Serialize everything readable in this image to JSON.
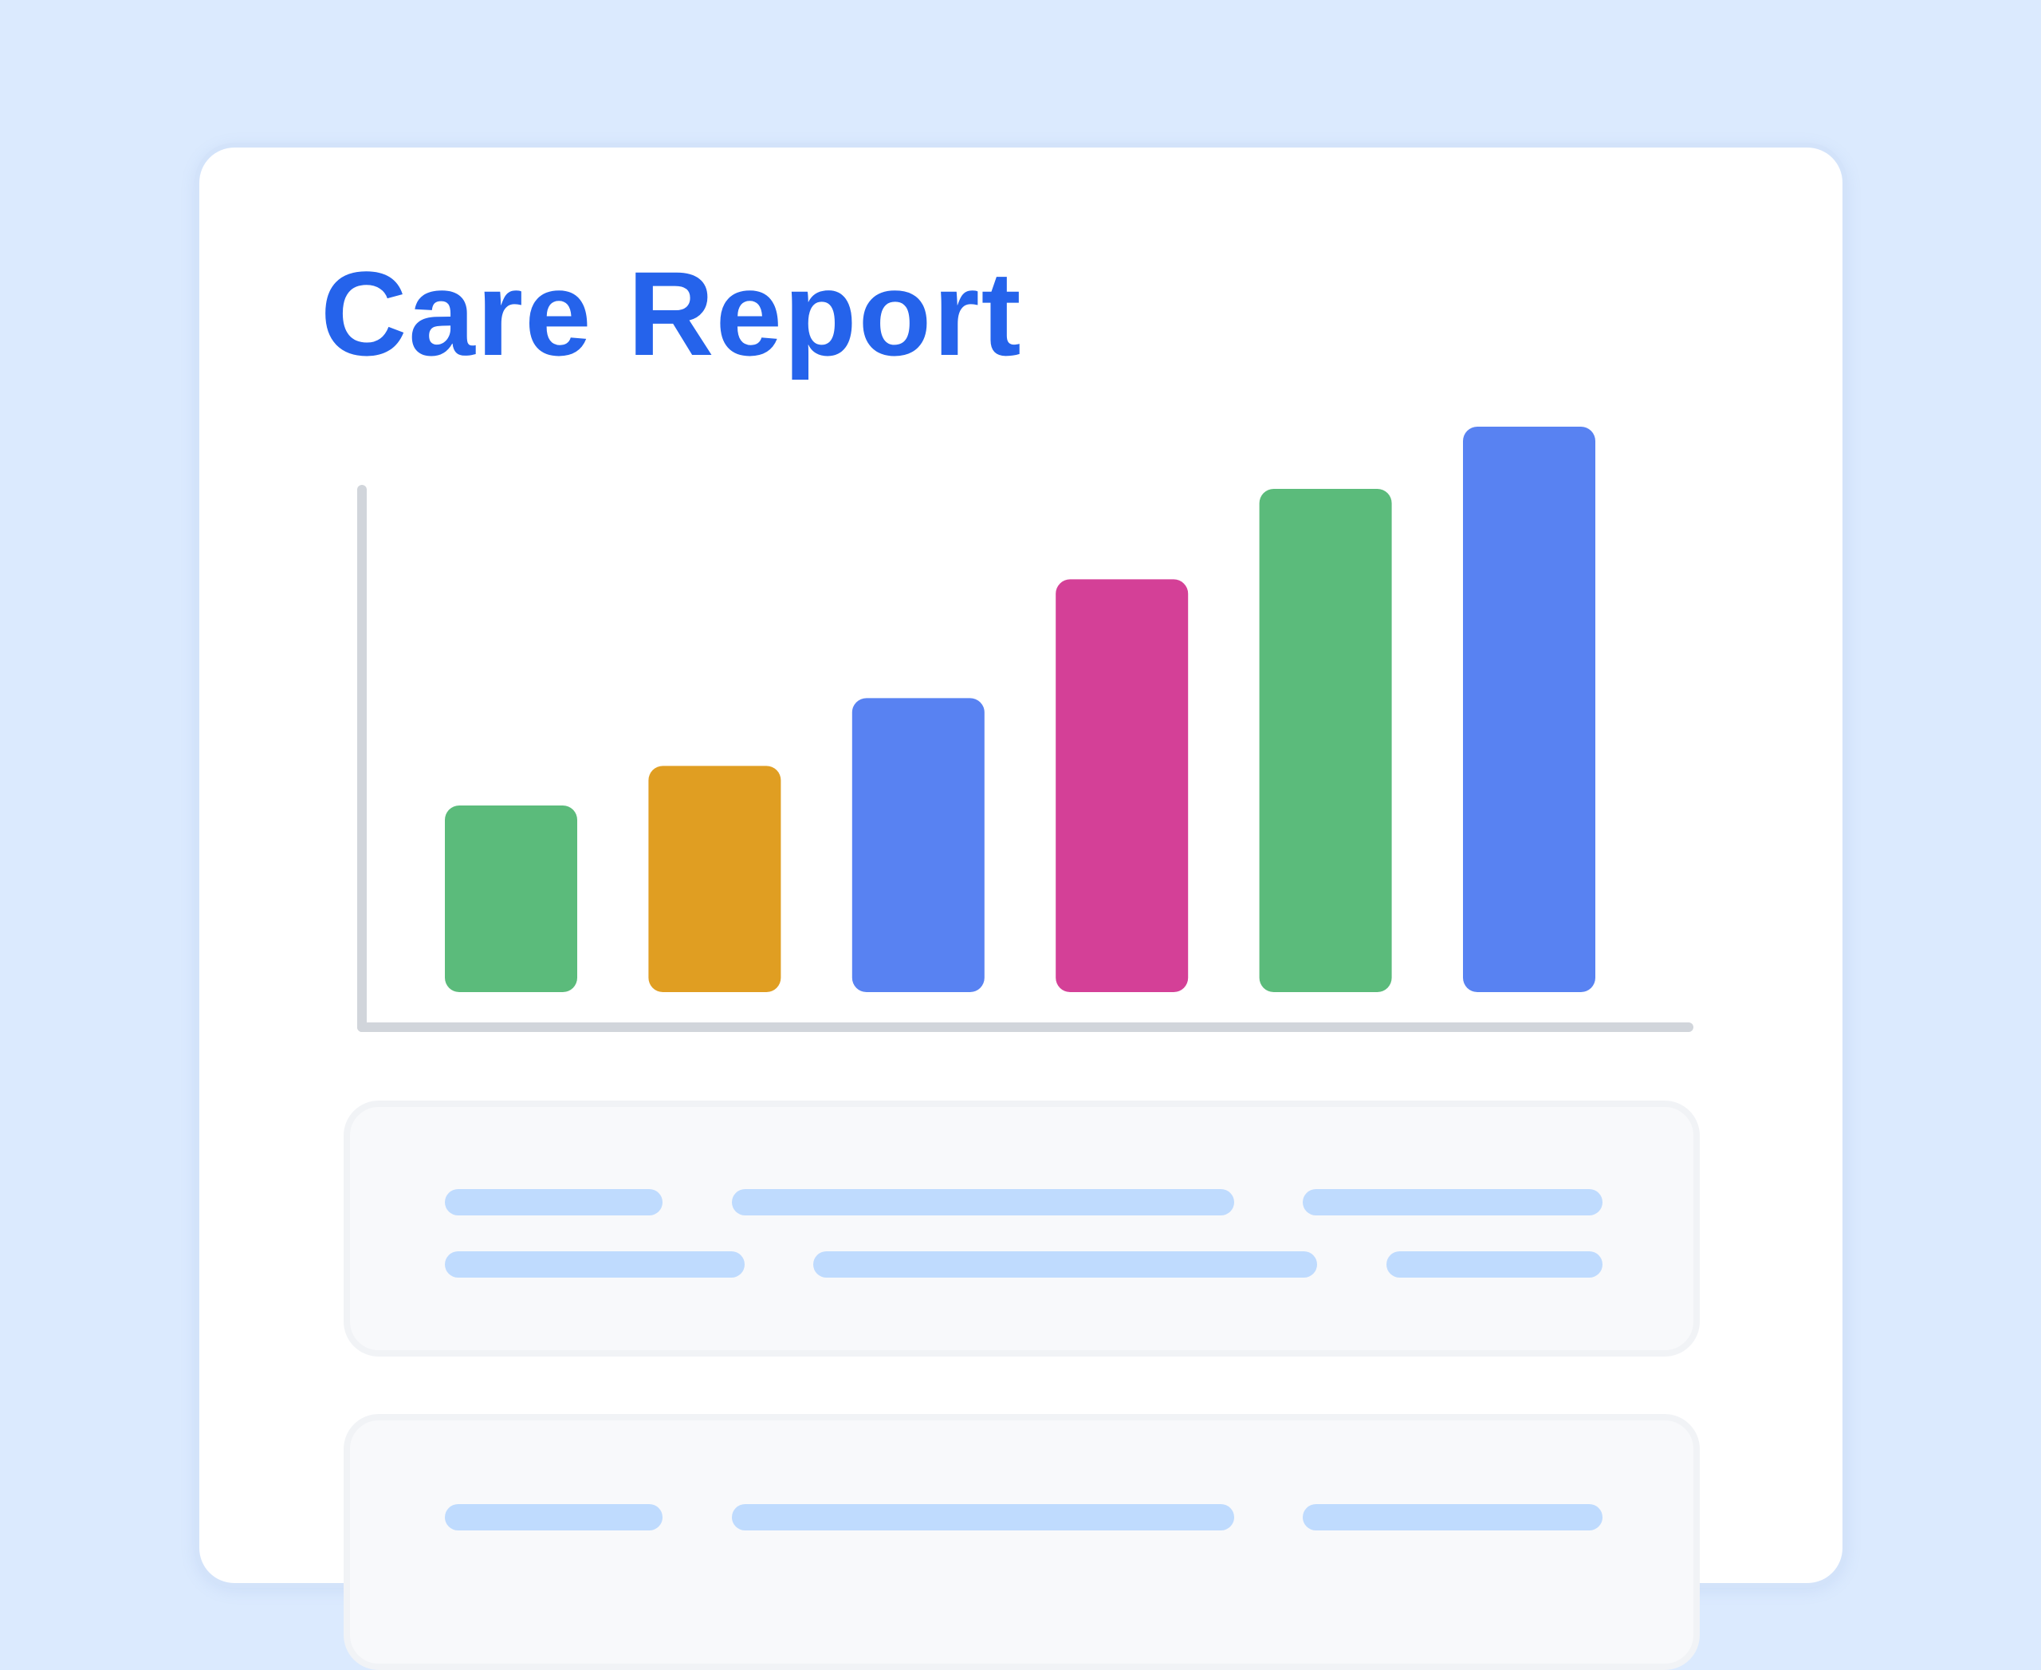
{
  "title": "Care Report",
  "colors": {
    "background": "#dbeafe",
    "title": "#2563eb",
    "axis": "#d1d5db",
    "placeholder": "#bfdbfe"
  },
  "chart_data": {
    "type": "bar",
    "title": "",
    "xlabel": "",
    "ylabel": "",
    "categories": [
      "",
      "",
      "",
      "",
      "",
      ""
    ],
    "values": [
      33,
      40,
      52,
      73,
      89,
      100
    ],
    "colors": [
      "#5bbb7b",
      "#e09e22",
      "#5882f2",
      "#d44097",
      "#5bbb7b",
      "#5882f2"
    ],
    "ylim": [
      0,
      100
    ],
    "grid": false,
    "legend": "none"
  }
}
